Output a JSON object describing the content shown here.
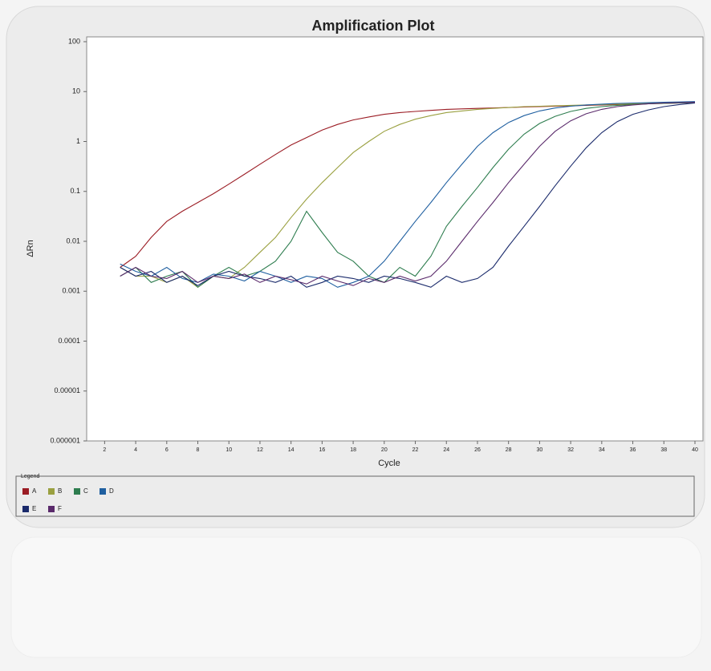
{
  "chart_data": {
    "type": "line",
    "title": "Amplification Plot",
    "x_label": "Cycle",
    "y_label": "ΔRn",
    "xlim": [
      1,
      40
    ],
    "xticks": [
      2,
      4,
      6,
      8,
      10,
      12,
      14,
      16,
      18,
      20,
      22,
      24,
      26,
      28,
      30,
      32,
      34,
      36,
      38,
      40
    ],
    "ylim": [
      1e-06,
      100
    ],
    "yticks": [
      1e-06,
      1e-05,
      0.0001,
      0.001,
      0.01,
      0.1,
      1,
      10,
      100
    ],
    "ylog": true,
    "legend_title": "Legend",
    "legend": "bottom",
    "x": [
      3,
      4,
      5,
      6,
      7,
      8,
      9,
      10,
      11,
      12,
      13,
      14,
      15,
      16,
      17,
      18,
      19,
      20,
      21,
      22,
      23,
      24,
      25,
      26,
      27,
      28,
      29,
      30,
      31,
      32,
      33,
      34,
      35,
      36,
      37,
      38,
      39,
      40
    ],
    "series": [
      {
        "name": "A",
        "color": "#9b1c24",
        "values": [
          0.003,
          0.005,
          0.012,
          0.025,
          0.04,
          0.06,
          0.09,
          0.14,
          0.22,
          0.35,
          0.55,
          0.85,
          1.2,
          1.7,
          2.2,
          2.7,
          3.1,
          3.5,
          3.8,
          4.0,
          4.2,
          4.4,
          4.5,
          4.6,
          4.7,
          4.8,
          4.9,
          5.0,
          5.1,
          5.2,
          5.3,
          5.4,
          5.5,
          5.6,
          5.7,
          5.8,
          5.9,
          6.0
        ]
      },
      {
        "name": "B",
        "color": "#9aa040",
        "values": [
          0.003,
          0.002,
          0.002,
          0.0015,
          0.002,
          0.0012,
          0.002,
          0.0018,
          0.003,
          0.006,
          0.012,
          0.03,
          0.07,
          0.15,
          0.3,
          0.6,
          1.0,
          1.6,
          2.2,
          2.8,
          3.3,
          3.8,
          4.1,
          4.4,
          4.6,
          4.8,
          5.0,
          5.1,
          5.2,
          5.3,
          5.4,
          5.5,
          5.6,
          5.7,
          5.8,
          5.9,
          6.0,
          6.1
        ]
      },
      {
        "name": "C",
        "color": "#2e7d4f",
        "values": [
          0.002,
          0.003,
          0.0015,
          0.002,
          0.0025,
          0.0012,
          0.002,
          0.003,
          0.002,
          0.0025,
          0.004,
          0.01,
          0.04,
          0.015,
          0.006,
          0.004,
          0.002,
          0.0015,
          0.003,
          0.002,
          0.005,
          0.02,
          0.05,
          0.12,
          0.3,
          0.7,
          1.4,
          2.3,
          3.2,
          4.0,
          4.6,
          5.0,
          5.3,
          5.5,
          5.7,
          5.8,
          5.9,
          6.0
        ]
      },
      {
        "name": "D",
        "color": "#1f5fa0",
        "values": [
          0.0035,
          0.0025,
          0.002,
          0.003,
          0.0018,
          0.0015,
          0.0022,
          0.002,
          0.0016,
          0.0025,
          0.002,
          0.0015,
          0.002,
          0.0018,
          0.0012,
          0.0015,
          0.002,
          0.004,
          0.01,
          0.025,
          0.06,
          0.15,
          0.35,
          0.8,
          1.5,
          2.4,
          3.3,
          4.1,
          4.7,
          5.1,
          5.4,
          5.6,
          5.8,
          5.9,
          6.0,
          6.1,
          6.2,
          6.3
        ]
      },
      {
        "name": "E",
        "color": "#1a2a6b",
        "values": [
          0.003,
          0.002,
          0.0025,
          0.0015,
          0.002,
          0.0013,
          0.002,
          0.0025,
          0.002,
          0.0018,
          0.0015,
          0.002,
          0.0012,
          0.0015,
          0.002,
          0.0018,
          0.0015,
          0.002,
          0.0018,
          0.0015,
          0.0012,
          0.002,
          0.0015,
          0.0018,
          0.003,
          0.008,
          0.02,
          0.05,
          0.13,
          0.32,
          0.75,
          1.5,
          2.5,
          3.5,
          4.3,
          5.0,
          5.5,
          5.9
        ]
      },
      {
        "name": "F",
        "color": "#5a2a6b",
        "values": [
          0.002,
          0.003,
          0.002,
          0.0018,
          0.0025,
          0.0015,
          0.002,
          0.0018,
          0.0022,
          0.0015,
          0.002,
          0.0017,
          0.0014,
          0.002,
          0.0016,
          0.0013,
          0.0018,
          0.0015,
          0.002,
          0.0016,
          0.002,
          0.004,
          0.01,
          0.025,
          0.06,
          0.15,
          0.35,
          0.8,
          1.6,
          2.6,
          3.6,
          4.4,
          5.0,
          5.4,
          5.7,
          5.9,
          6.0,
          6.1
        ]
      }
    ]
  }
}
